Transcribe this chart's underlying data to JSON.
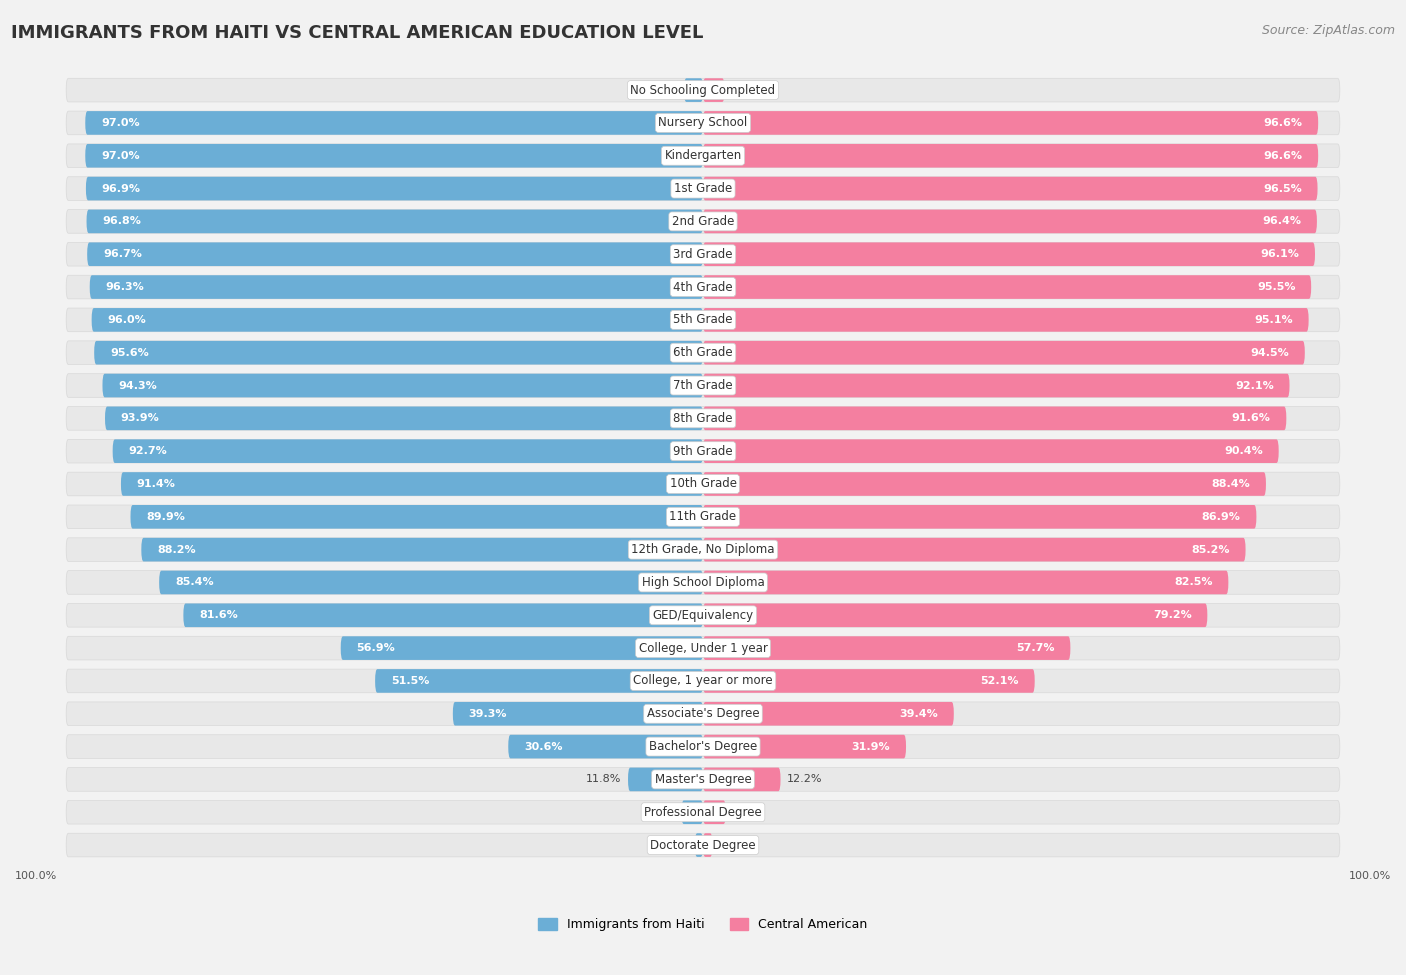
{
  "categories": [
    "No Schooling Completed",
    "Nursery School",
    "Kindergarten",
    "1st Grade",
    "2nd Grade",
    "3rd Grade",
    "4th Grade",
    "5th Grade",
    "6th Grade",
    "7th Grade",
    "8th Grade",
    "9th Grade",
    "10th Grade",
    "11th Grade",
    "12th Grade, No Diploma",
    "High School Diploma",
    "GED/Equivalency",
    "College, Under 1 year",
    "College, 1 year or more",
    "Associate's Degree",
    "Bachelor's Degree",
    "Master's Degree",
    "Professional Degree",
    "Doctorate Degree"
  ],
  "haiti_values": [
    3.0,
    97.0,
    97.0,
    96.9,
    96.8,
    96.7,
    96.3,
    96.0,
    95.6,
    94.3,
    93.9,
    92.7,
    91.4,
    89.9,
    88.2,
    85.4,
    81.6,
    56.9,
    51.5,
    39.3,
    30.6,
    11.8,
    3.4,
    1.3
  ],
  "central_values": [
    3.4,
    96.6,
    96.6,
    96.5,
    96.4,
    96.1,
    95.5,
    95.1,
    94.5,
    92.1,
    91.6,
    90.4,
    88.4,
    86.9,
    85.2,
    82.5,
    79.2,
    57.7,
    52.1,
    39.4,
    31.9,
    12.2,
    3.6,
    1.5
  ],
  "haiti_color": "#6baed6",
  "central_color": "#f47fa0",
  "background_color": "#f2f2f2",
  "bar_bg_color": "#e8e8e8",
  "bar_bg_border": "#d8d8d8",
  "title": "IMMIGRANTS FROM HAITI VS CENTRAL AMERICAN EDUCATION LEVEL",
  "source": "Source: ZipAtlas.com",
  "title_fontsize": 13,
  "source_fontsize": 9,
  "label_fontsize": 8.5,
  "value_fontsize": 8.0,
  "legend_fontsize": 9,
  "max_val": 100.0,
  "value_threshold": 15
}
